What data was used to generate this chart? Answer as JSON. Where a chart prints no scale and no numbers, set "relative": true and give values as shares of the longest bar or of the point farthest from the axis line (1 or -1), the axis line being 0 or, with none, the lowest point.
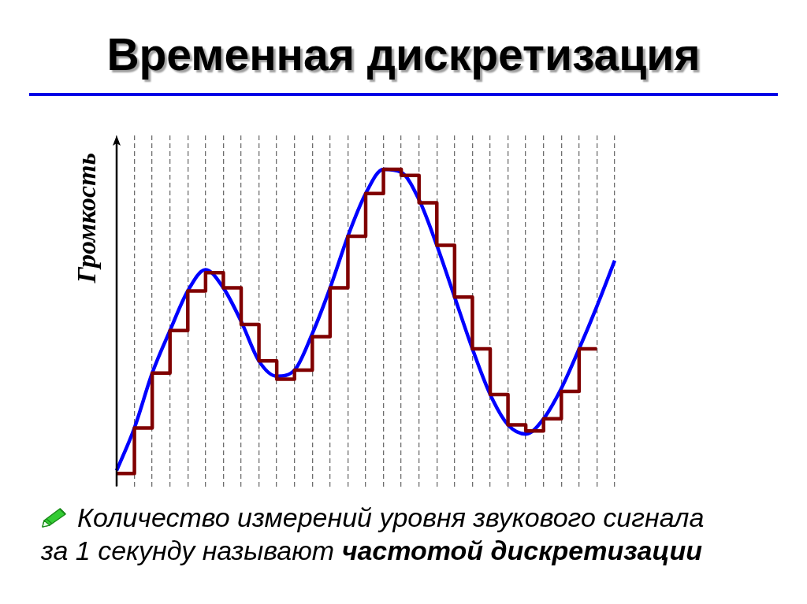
{
  "chart_data": {
    "type": "line",
    "title": "Временная дискретизация",
    "ylabel": "Громкость",
    "relative": true,
    "categories": [
      null,
      null,
      null,
      null,
      null,
      null,
      null,
      null,
      null,
      null,
      null,
      null,
      null,
      null,
      null,
      null,
      null,
      null,
      null,
      null,
      null,
      null,
      null,
      null,
      null,
      null,
      null,
      null,
      null
    ],
    "grid": "x",
    "marker": "none",
    "line_style": "solid",
    "series": [
      {
        "type": "step",
        "color": "#800000",
        "values": [
          0,
          0.15,
          0.33,
          0.47,
          0.6,
          0.66,
          0.61,
          0.49,
          0.37,
          0.31,
          0.34,
          0.45,
          0.61,
          0.78,
          0.92,
          1,
          0.98,
          0.89,
          0.75,
          0.58,
          0.41,
          0.26,
          0.16,
          0.14,
          0.18,
          0.27,
          0.41,
          0.41,
          null
        ]
      },
      {
        "color": "#0000ff",
        "values": [
          0.01,
          0.15,
          0.33,
          0.47,
          0.6,
          0.67,
          0.61,
          0.5,
          0.37,
          0.32,
          0.34,
          0.46,
          0.61,
          0.78,
          0.92,
          1,
          0.99,
          0.9,
          0.75,
          0.58,
          0.41,
          0.26,
          0.16,
          0.13,
          0.18,
          0.28,
          0.41,
          0.55,
          0.7
        ]
      }
    ],
    "annotations": [
      "Количество измерений уровня звукового сигнала за 1 секунду называют",
      "частотой дискретизации"
    ]
  }
}
